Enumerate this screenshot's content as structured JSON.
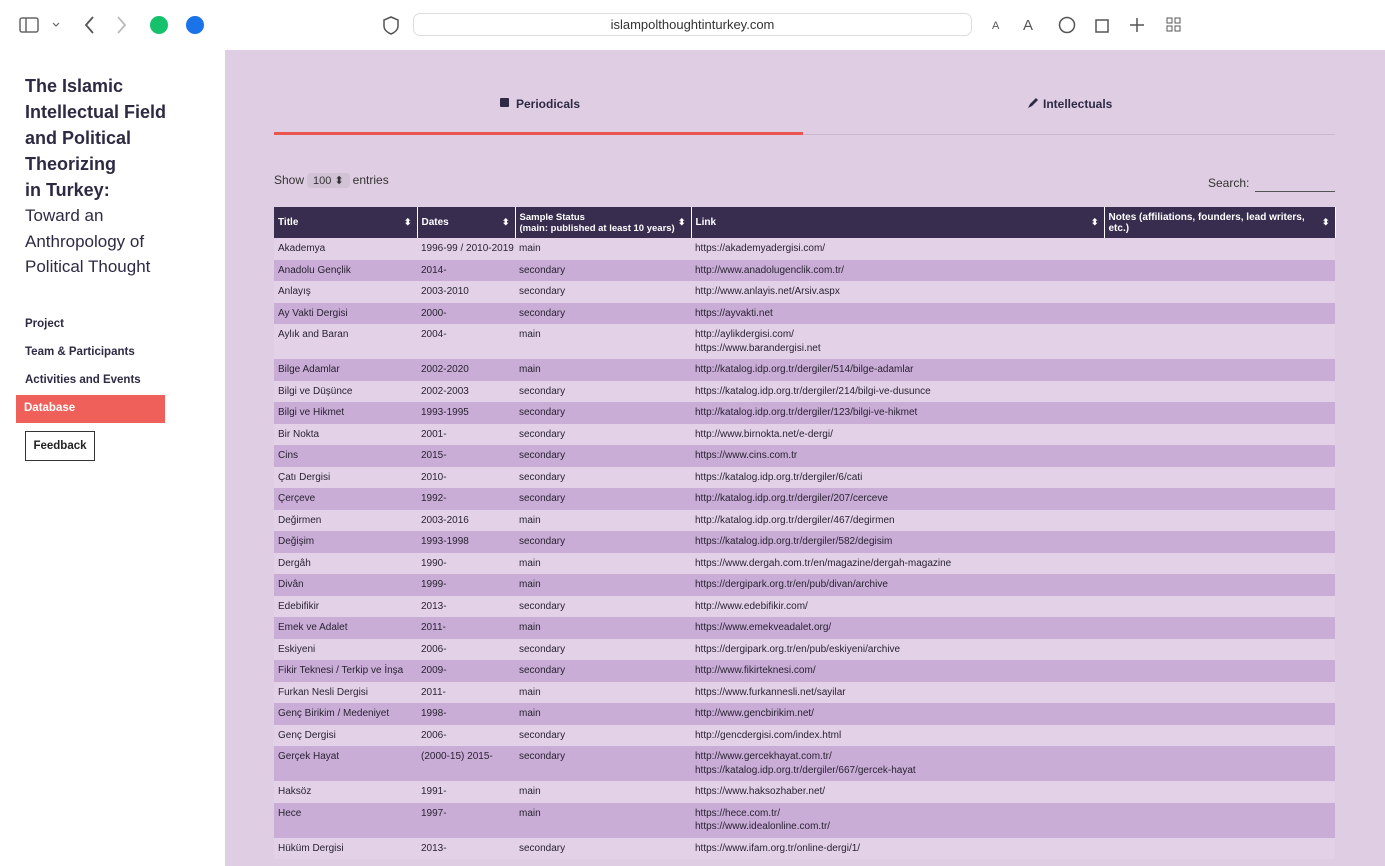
{
  "browser": {
    "url": "islampolthoughtinturkey.com"
  },
  "sidebar": {
    "title_bold": [
      "The Islamic",
      "Intellectual Field",
      "and Political",
      "Theorizing",
      "in Turkey:"
    ],
    "title_light": [
      "Toward an",
      "Anthropology of",
      "Political Thought"
    ],
    "nav": [
      "Project",
      "Team & Participants",
      "Activities and Events",
      "Database"
    ],
    "feedback": "Feedback"
  },
  "tabs": [
    "Periodicals",
    "Intellectuals"
  ],
  "length_menu": {
    "show": "Show",
    "value": "100",
    "entries": "entries"
  },
  "search_label": "Search:",
  "table": {
    "headers": [
      "Title",
      "Dates",
      [
        "Sample Status",
        "(main: published at least 10 years)"
      ],
      "Link",
      "Notes (affiliations, founders, lead writers, etc.)"
    ],
    "rows": [
      {
        "title": "Akademya",
        "dates": "1996-99 / 2010-2019",
        "status": "main",
        "links": [
          "https://akademyadergisi.com/"
        ]
      },
      {
        "title": "Anadolu Gençlik",
        "dates": "2014-",
        "status": "secondary",
        "links": [
          "http://www.anadolugenclik.com.tr/"
        ]
      },
      {
        "title": "Anlayış",
        "dates": "2003-2010",
        "status": "secondary",
        "links": [
          "http://www.anlayis.net/Arsiv.aspx"
        ]
      },
      {
        "title": "Ay Vakti Dergisi",
        "dates": "2000-",
        "status": "secondary",
        "links": [
          "https://ayvakti.net"
        ]
      },
      {
        "title": "Aylık and Baran",
        "dates": "2004-",
        "status": "main",
        "links": [
          "http://aylikdergisi.com/",
          "https://www.barandergisi.net"
        ]
      },
      {
        "title": "Bilge Adamlar",
        "dates": "2002-2020",
        "status": "main",
        "links": [
          "http://katalog.idp.org.tr/dergiler/514/bilge-adamlar"
        ]
      },
      {
        "title": "Bilgi ve Düşünce",
        "dates": "2002-2003",
        "status": "secondary",
        "links": [
          "https://katalog.idp.org.tr/dergiler/214/bilgi-ve-dusunce"
        ]
      },
      {
        "title": "Bilgi ve Hikmet",
        "dates": "1993-1995",
        "status": "secondary",
        "links": [
          "http://katalog.idp.org.tr/dergiler/123/bilgi-ve-hikmet"
        ]
      },
      {
        "title": "Bir Nokta",
        "dates": "2001-",
        "status": "secondary",
        "links": [
          "http://www.birnokta.net/e-dergi/"
        ]
      },
      {
        "title": "Cins",
        "dates": "2015-",
        "status": "secondary",
        "links": [
          "https://www.cins.com.tr"
        ]
      },
      {
        "title": "Çatı Dergisi",
        "dates": "2010-",
        "status": "secondary",
        "links": [
          "https://katalog.idp.org.tr/dergiler/6/cati"
        ]
      },
      {
        "title": "Çerçeve",
        "dates": "1992-",
        "status": "secondary",
        "links": [
          "http://katalog.idp.org.tr/dergiler/207/cerceve"
        ]
      },
      {
        "title": "Değirmen",
        "dates": "2003-2016",
        "status": "main",
        "links": [
          "http://katalog.idp.org.tr/dergiler/467/degirmen"
        ]
      },
      {
        "title": "Değişim",
        "dates": "1993-1998",
        "status": "secondary",
        "links": [
          "https://katalog.idp.org.tr/dergiler/582/degisim"
        ]
      },
      {
        "title": "Dergâh",
        "dates": "1990-",
        "status": "main",
        "links": [
          "https://www.dergah.com.tr/en/magazine/dergah-magazine"
        ]
      },
      {
        "title": "Divân",
        "dates": "1999-",
        "status": "main",
        "links": [
          "https://dergipark.org.tr/en/pub/divan/archive"
        ]
      },
      {
        "title": "Edebifikir",
        "dates": "2013-",
        "status": "secondary",
        "links": [
          "http://www.edebifikir.com/"
        ]
      },
      {
        "title": "Emek ve Adalet",
        "dates": "2011-",
        "status": "main",
        "links": [
          "https://www.emekveadalet.org/"
        ]
      },
      {
        "title": "Eskiyeni",
        "dates": "2006-",
        "status": "secondary",
        "links": [
          "https://dergipark.org.tr/en/pub/eskiyeni/archive"
        ]
      },
      {
        "title": "Fikir Teknesi / Terkip ve İnşa",
        "dates": "2009-",
        "status": "secondary",
        "links": [
          "http://www.fikirteknesi.com/"
        ]
      },
      {
        "title": "Furkan Nesli Dergisi",
        "dates": "2011-",
        "status": "main",
        "links": [
          "https://www.furkannesli.net/sayilar"
        ]
      },
      {
        "title": "Genç Birikim / Medeniyet",
        "dates": "1998-",
        "status": "main",
        "links": [
          "http://www.gencbirikim.net/"
        ]
      },
      {
        "title": "Genç Dergisi",
        "dates": "2006-",
        "status": "secondary",
        "links": [
          "http://gencdergisi.com/index.html"
        ]
      },
      {
        "title": "Gerçek Hayat",
        "dates": "(2000-15) 2015-",
        "status": "secondary",
        "links": [
          "http://www.gercekhayat.com.tr/",
          "https://katalog.idp.org.tr/dergiler/667/gercek-hayat"
        ]
      },
      {
        "title": "Haksöz",
        "dates": "1991-",
        "status": "main",
        "links": [
          "https://www.haksozhaber.net/"
        ]
      },
      {
        "title": "Hece",
        "dates": "1997-",
        "status": "main",
        "links": [
          "https://hece.com.tr/",
          "https://www.idealonline.com.tr/"
        ]
      },
      {
        "title": "Hüküm Dergisi",
        "dates": "2013-",
        "status": "secondary",
        "links": [
          "https://www.ifam.org.tr/online-dergi/1/"
        ]
      }
    ]
  }
}
